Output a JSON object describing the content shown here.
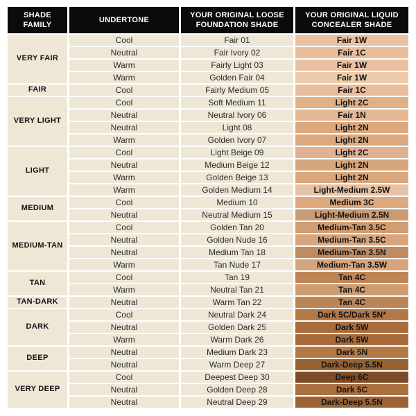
{
  "colors": {
    "header_bg": "#0B0B0B",
    "header_text": "#FFFFFF",
    "cell_bg": "#EFE7D6",
    "separator": "#FFFFFF",
    "body_text": "#2B2B2B",
    "emphasis_text": "#141414"
  },
  "chart_data": {
    "type": "table",
    "columns": [
      "SHADE FAMILY",
      "UNDERTONE",
      "YOUR ORIGINAL LOOSE FOUNDATION SHADE",
      "YOUR ORIGINAL LIQUID CONCEALER SHADE"
    ],
    "groups": [
      {
        "shade_family": "VERY FAIR",
        "rows": [
          {
            "undertone": "Cool",
            "foundation_shade": "Fair 01",
            "concealer_shade": "Fair 1W",
            "swatch_color": "#E9C1A1"
          },
          {
            "undertone": "Neutral",
            "foundation_shade": "Fair Ivory 02",
            "concealer_shade": "Fair 1C",
            "swatch_color": "#E7BD9E"
          },
          {
            "undertone": "Warm",
            "foundation_shade": "Fairly Light 03",
            "concealer_shade": "Fair 1W",
            "swatch_color": "#E9C0A0"
          },
          {
            "undertone": "Warm",
            "foundation_shade": "Golden Fair 04",
            "concealer_shade": "Fair 1W",
            "swatch_color": "#EDCCAC"
          }
        ]
      },
      {
        "shade_family": "FAIR",
        "rows": [
          {
            "undertone": "Cool",
            "foundation_shade": "Fairly Medium 05",
            "concealer_shade": "Fair 1C",
            "swatch_color": "#E7BD9E"
          }
        ]
      },
      {
        "shade_family": "VERY LIGHT",
        "rows": [
          {
            "undertone": "Cool",
            "foundation_shade": "Soft Medium 11",
            "concealer_shade": "Light 2C",
            "swatch_color": "#E0B189"
          },
          {
            "undertone": "Neutral",
            "foundation_shade": "Neutral Ivory 06",
            "concealer_shade": "Fair 1N",
            "swatch_color": "#E4B795"
          },
          {
            "undertone": "Neutral",
            "foundation_shade": "Light 08",
            "concealer_shade": "Light 2N",
            "swatch_color": "#DCA97F"
          },
          {
            "undertone": "Warm",
            "foundation_shade": "Golden Ivory 07",
            "concealer_shade": "Light 2N",
            "swatch_color": "#DCA97F"
          }
        ]
      },
      {
        "shade_family": "LIGHT",
        "rows": [
          {
            "undertone": "Cool",
            "foundation_shade": "Light Beige 09",
            "concealer_shade": "Light 2C",
            "swatch_color": "#DFB292"
          },
          {
            "undertone": "Neutral",
            "foundation_shade": "Medium Beige 12",
            "concealer_shade": "Light 2N",
            "swatch_color": "#D8A67C"
          },
          {
            "undertone": "Warm",
            "foundation_shade": "Golden Beige 13",
            "concealer_shade": "Light 2N",
            "swatch_color": "#D9A87F"
          },
          {
            "undertone": "Warm",
            "foundation_shade": "Golden Medium 14",
            "concealer_shade": "Light-Medium 2.5W",
            "swatch_color": "#E6C1A3"
          }
        ]
      },
      {
        "shade_family": "MEDIUM",
        "rows": [
          {
            "undertone": "Cool",
            "foundation_shade": "Medium 10",
            "concealer_shade": "Medium 3C",
            "swatch_color": "#DDAA80"
          },
          {
            "undertone": "Neutral",
            "foundation_shade": "Neutral Medium 15",
            "concealer_shade": "Light-Medium 2.5N",
            "swatch_color": "#C89B74"
          }
        ]
      },
      {
        "shade_family": "MEDIUM-TAN",
        "rows": [
          {
            "undertone": "Cool",
            "foundation_shade": "Golden Tan 20",
            "concealer_shade": "Medium-Tan 3.5C",
            "swatch_color": "#D19D73"
          },
          {
            "undertone": "Neutral",
            "foundation_shade": "Golden Nude 16",
            "concealer_shade": "Medium-Tan 3.5C",
            "swatch_color": "#D7A57E"
          },
          {
            "undertone": "Neutral",
            "foundation_shade": "Medium Tan 18",
            "concealer_shade": "Medium-Tan 3.5N",
            "swatch_color": "#C18B5F"
          },
          {
            "undertone": "Warm",
            "foundation_shade": "Tan Nude 17",
            "concealer_shade": "Medium-Tan 3.5W",
            "swatch_color": "#D6A57D"
          }
        ]
      },
      {
        "shade_family": "TAN",
        "rows": [
          {
            "undertone": "Cool",
            "foundation_shade": "Tan 19",
            "concealer_shade": "Tan 4C",
            "swatch_color": "#BF8557"
          },
          {
            "undertone": "Warm",
            "foundation_shade": "Neutral Tan 21",
            "concealer_shade": "Tan 4C",
            "swatch_color": "#CF9B71"
          }
        ]
      },
      {
        "shade_family": "TAN-DARK",
        "rows": [
          {
            "undertone": "Neutral",
            "foundation_shade": "Warm Tan 22",
            "concealer_shade": "Tan 4C",
            "swatch_color": "#BD8556"
          }
        ]
      },
      {
        "shade_family": "DARK",
        "rows": [
          {
            "undertone": "Cool",
            "foundation_shade": "Neutral Dark 24",
            "concealer_shade": "Dark 5C/Dark 5N*",
            "swatch_color": "#B37848"
          },
          {
            "undertone": "Neutral",
            "foundation_shade": "Golden Dark 25",
            "concealer_shade": "Dark 5W",
            "swatch_color": "#A86C3C"
          },
          {
            "undertone": "Warm",
            "foundation_shade": "Warm Dark 26",
            "concealer_shade": "Dark 5W",
            "swatch_color": "#A86C3C"
          }
        ]
      },
      {
        "shade_family": "DEEP",
        "rows": [
          {
            "undertone": "Neutral",
            "foundation_shade": "Medium Dark 23",
            "concealer_shade": "Dark 5N",
            "swatch_color": "#B27947"
          },
          {
            "undertone": "Neutral",
            "foundation_shade": "Warm Deep 27",
            "concealer_shade": "Dark-Deep 5.5N",
            "swatch_color": "#986130"
          }
        ]
      },
      {
        "shade_family": "VERY DEEP",
        "rows": [
          {
            "undertone": "Cool",
            "foundation_shade": "Deepest Deep 30",
            "concealer_shade": "Deep 6C",
            "swatch_color": "#7E4B27"
          },
          {
            "undertone": "Neutral",
            "foundation_shade": "Golden Deep 28",
            "concealer_shade": "Dark 5C",
            "swatch_color": "#A97040"
          },
          {
            "undertone": "Neutral",
            "foundation_shade": "Neutral Deep 29",
            "concealer_shade": "Dark-Deep 5.5N",
            "swatch_color": "#9B6334"
          }
        ]
      }
    ]
  }
}
